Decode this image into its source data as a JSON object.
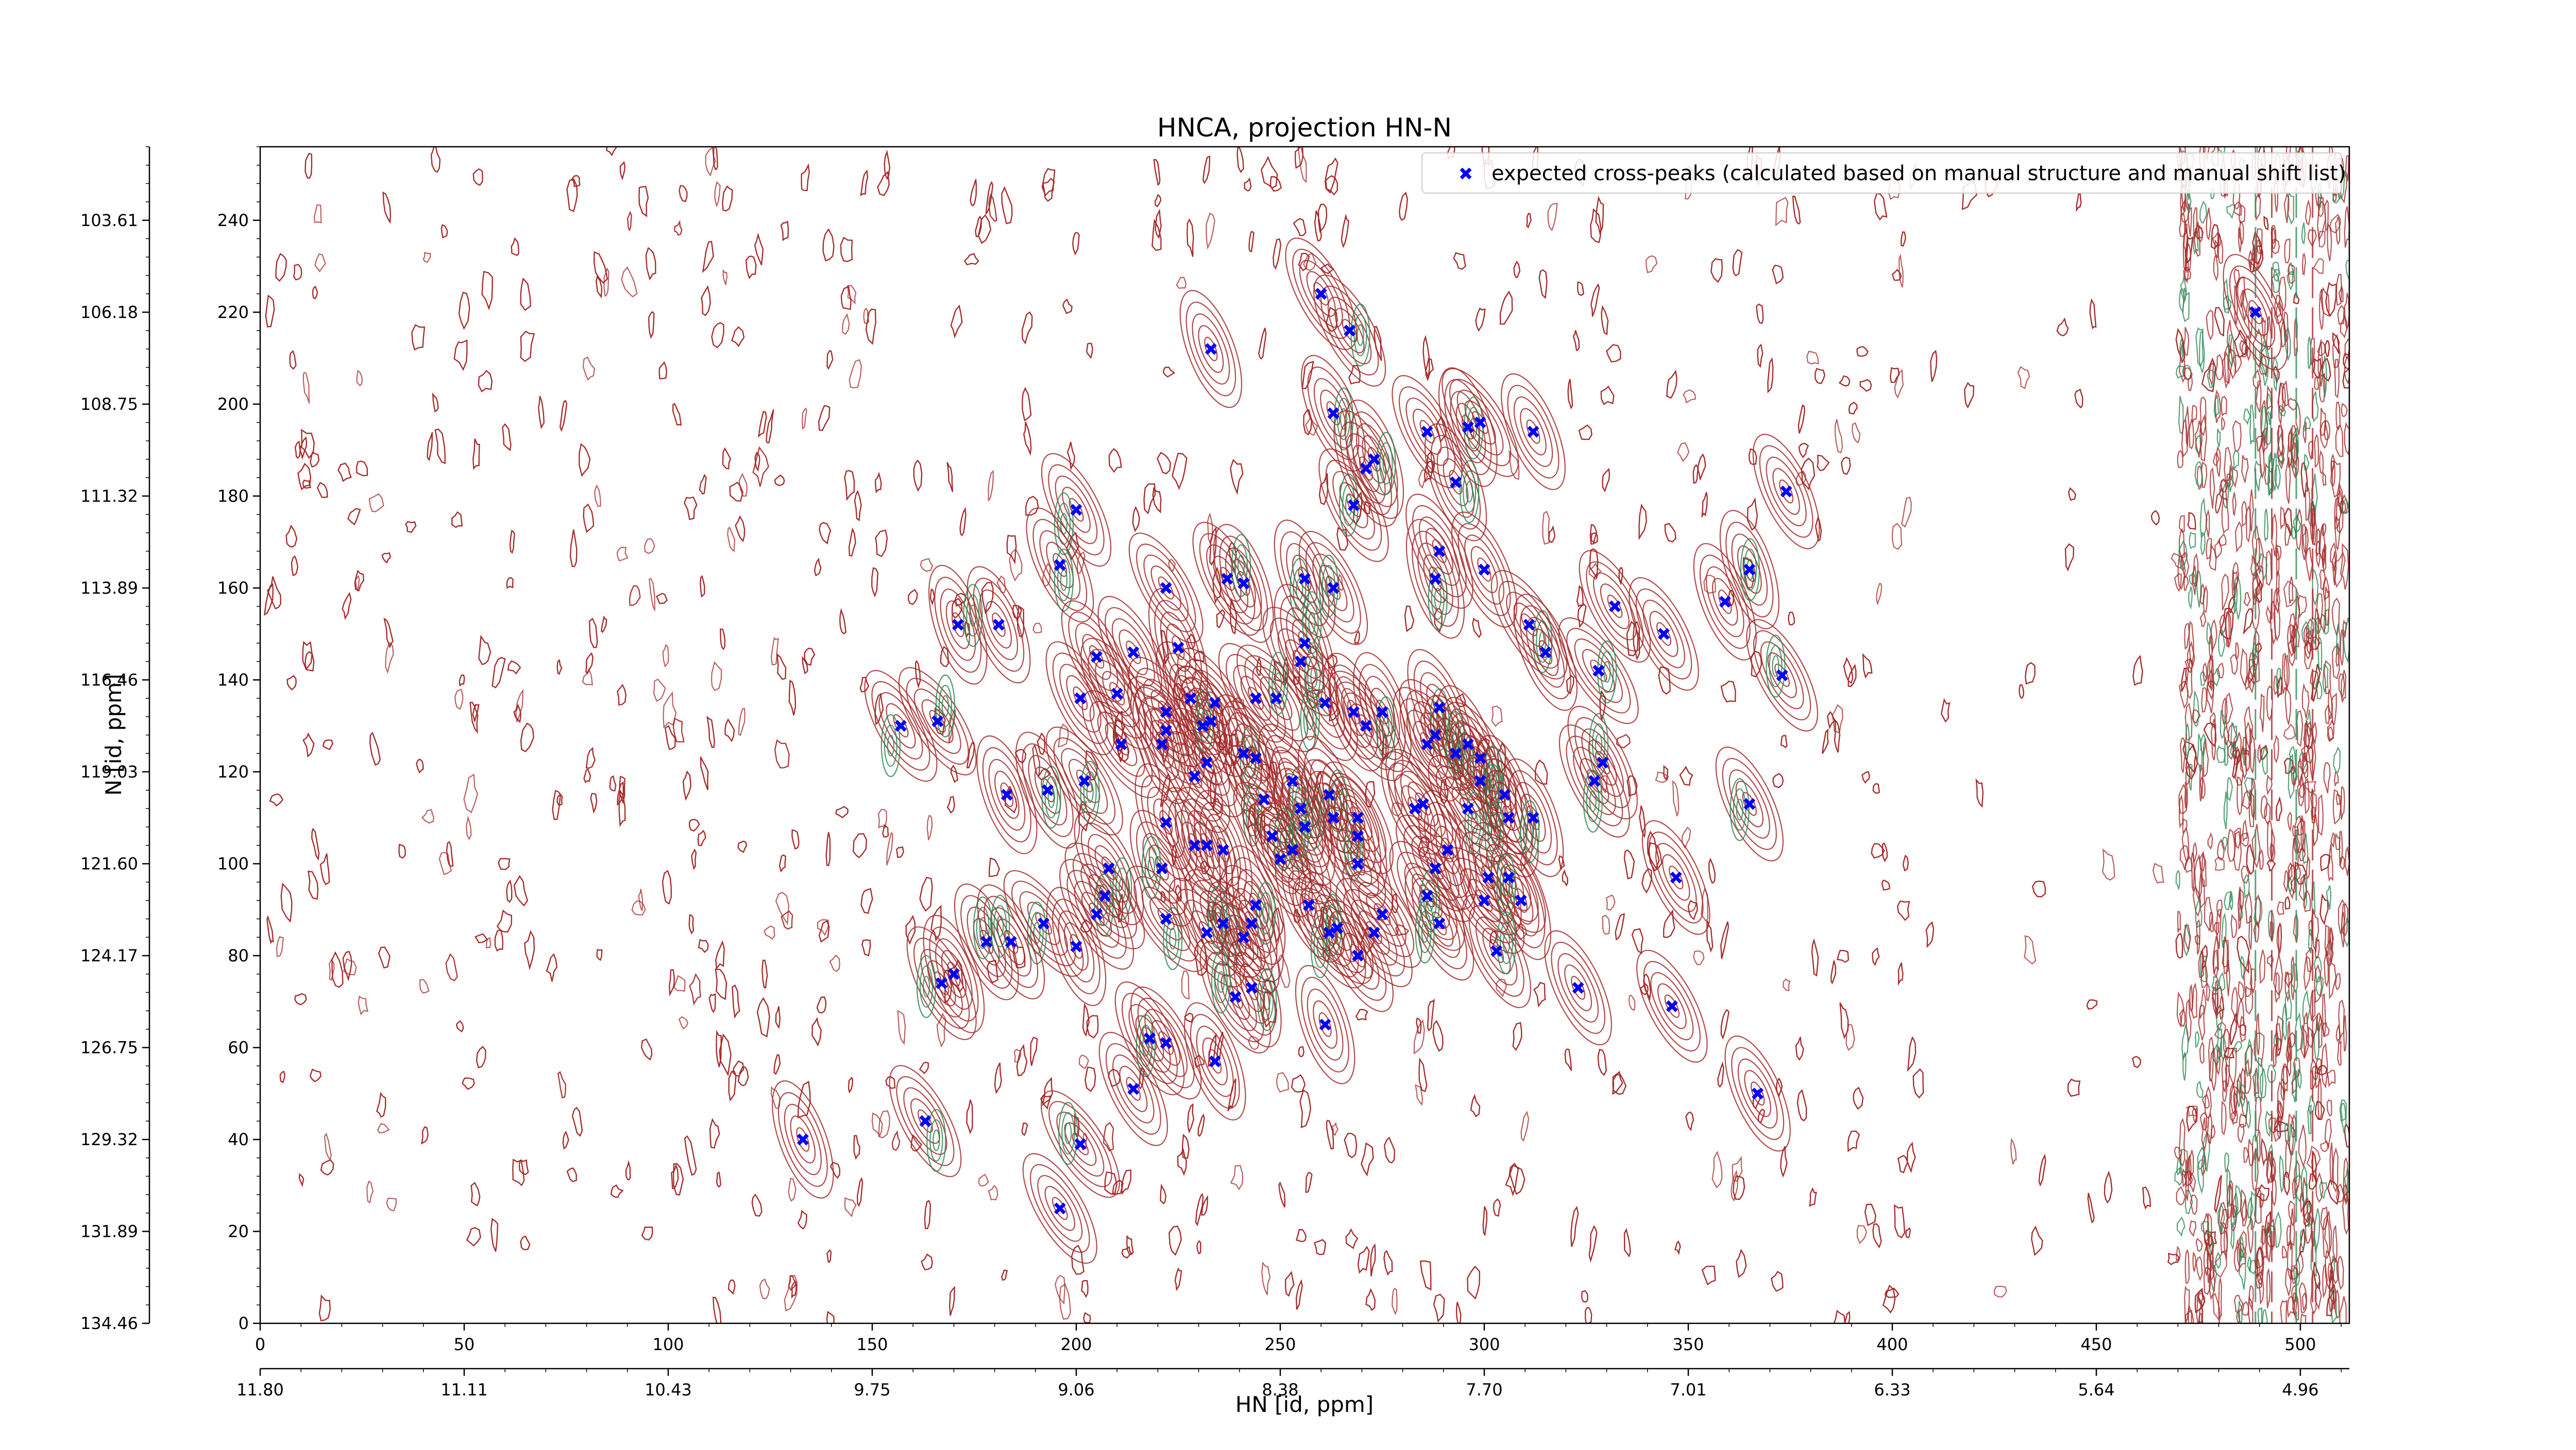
{
  "chart_data": {
    "type": "scatter",
    "title": "HNCA, projection HN-N",
    "xlabel": "HN [id, ppm]",
    "ylabel": "N [id, ppm]",
    "x_index_ticks": [
      "0",
      "50",
      "100",
      "150",
      "200",
      "250",
      "300",
      "350",
      "400",
      "450",
      "500"
    ],
    "x_ppm_ticks": [
      "11.80",
      "11.11",
      "10.43",
      "9.75",
      "9.06",
      "8.38",
      "7.70",
      "7.01",
      "6.33",
      "5.64",
      "4.96"
    ],
    "y_index_ticks": [
      "0",
      "20",
      "40",
      "60",
      "80",
      "100",
      "120",
      "140",
      "160",
      "180",
      "200",
      "220",
      "240"
    ],
    "y_ppm_ticks": [
      "134.46",
      "131.89",
      "129.32",
      "126.75",
      "124.17",
      "121.60",
      "119.03",
      "116.46",
      "113.89",
      "111.32",
      "108.75",
      "106.18",
      "103.61"
    ],
    "xlim": [
      0,
      512
    ],
    "ylim": [
      0,
      256
    ],
    "grid": false,
    "legend_position": "top-right",
    "colors": {
      "contour_positive": "#a52a2a",
      "contour_negative": "#2e8b57",
      "marker": "#0000ff"
    },
    "series": [
      {
        "name": "expected cross-peaks (calculated based on manual structure and manual shift list)",
        "marker": "x",
        "points": [
          [
            260,
            224
          ],
          [
            267,
            216
          ],
          [
            233,
            212
          ],
          [
            263,
            198
          ],
          [
            268,
            178
          ],
          [
            271,
            186
          ],
          [
            273,
            188
          ],
          [
            286,
            194
          ],
          [
            293,
            183
          ],
          [
            296,
            195
          ],
          [
            299,
            196
          ],
          [
            312,
            194
          ],
          [
            374,
            181
          ],
          [
            200,
            177
          ],
          [
            196,
            165
          ],
          [
            222,
            160
          ],
          [
            237,
            162
          ],
          [
            241,
            161
          ],
          [
            256,
            162
          ],
          [
            263,
            160
          ],
          [
            288,
            162
          ],
          [
            289,
            168
          ],
          [
            300,
            164
          ],
          [
            311,
            152
          ],
          [
            332,
            156
          ],
          [
            344,
            150
          ],
          [
            359,
            157
          ],
          [
            365,
            164
          ],
          [
            373,
            141
          ],
          [
            171,
            152
          ],
          [
            181,
            152
          ],
          [
            205,
            145
          ],
          [
            214,
            146
          ],
          [
            225,
            147
          ],
          [
            255,
            144
          ],
          [
            256,
            148
          ],
          [
            315,
            146
          ],
          [
            328,
            142
          ],
          [
            210,
            137
          ],
          [
            201,
            136
          ],
          [
            222,
            133
          ],
          [
            228,
            136
          ],
          [
            234,
            135
          ],
          [
            244,
            136
          ],
          [
            249,
            136
          ],
          [
            261,
            135
          ],
          [
            268,
            133
          ],
          [
            275,
            133
          ],
          [
            289,
            134
          ],
          [
            157,
            130
          ],
          [
            166,
            131
          ],
          [
            222,
            129
          ],
          [
            233,
            131
          ],
          [
            231,
            130
          ],
          [
            288,
            128
          ],
          [
            211,
            126
          ],
          [
            221,
            126
          ],
          [
            232,
            122
          ],
          [
            241,
            124
          ],
          [
            244,
            123
          ],
          [
            271,
            130
          ],
          [
            286,
            126
          ],
          [
            299,
            123
          ],
          [
            293,
            124
          ],
          [
            296,
            126
          ],
          [
            329,
            122
          ],
          [
            229,
            119
          ],
          [
            253,
            118
          ],
          [
            299,
            118
          ],
          [
            305,
            115
          ],
          [
            327,
            118
          ],
          [
            365,
            113
          ],
          [
            183,
            115
          ],
          [
            193,
            116
          ],
          [
            202,
            118
          ],
          [
            246,
            114
          ],
          [
            255,
            112
          ],
          [
            262,
            115
          ],
          [
            269,
            110
          ],
          [
            283,
            112
          ],
          [
            285,
            113
          ],
          [
            296,
            112
          ],
          [
            306,
            110
          ],
          [
            312,
            110
          ],
          [
            222,
            109
          ],
          [
            248,
            106
          ],
          [
            256,
            108
          ],
          [
            269,
            106
          ],
          [
            269,
            100
          ],
          [
            229,
            104
          ],
          [
            232,
            104
          ],
          [
            236,
            103
          ],
          [
            221,
            99
          ],
          [
            208,
            99
          ],
          [
            250,
            101
          ],
          [
            253,
            103
          ],
          [
            263,
            110
          ],
          [
            288,
            99
          ],
          [
            291,
            103
          ],
          [
            301,
            97
          ],
          [
            306,
            97
          ],
          [
            347,
            97
          ],
          [
            207,
            93
          ],
          [
            244,
            91
          ],
          [
            257,
            91
          ],
          [
            275,
            89
          ],
          [
            286,
            93
          ],
          [
            300,
            92
          ],
          [
            309,
            92
          ],
          [
            192,
            87
          ],
          [
            205,
            89
          ],
          [
            222,
            88
          ],
          [
            236,
            87
          ],
          [
            243,
            87
          ],
          [
            262,
            85
          ],
          [
            273,
            85
          ],
          [
            289,
            87
          ],
          [
            178,
            83
          ],
          [
            184,
            83
          ],
          [
            200,
            82
          ],
          [
            232,
            85
          ],
          [
            241,
            84
          ],
          [
            264,
            86
          ],
          [
            269,
            80
          ],
          [
            303,
            81
          ],
          [
            170,
            76
          ],
          [
            167,
            74
          ],
          [
            243,
            73
          ],
          [
            239,
            71
          ],
          [
            261,
            65
          ],
          [
            323,
            73
          ],
          [
            346,
            69
          ],
          [
            218,
            62
          ],
          [
            222,
            61
          ],
          [
            234,
            57
          ],
          [
            214,
            51
          ],
          [
            367,
            50
          ],
          [
            133,
            40
          ],
          [
            201,
            39
          ],
          [
            196,
            25
          ],
          [
            163,
            44
          ],
          [
            489,
            220
          ]
        ]
      }
    ]
  }
}
